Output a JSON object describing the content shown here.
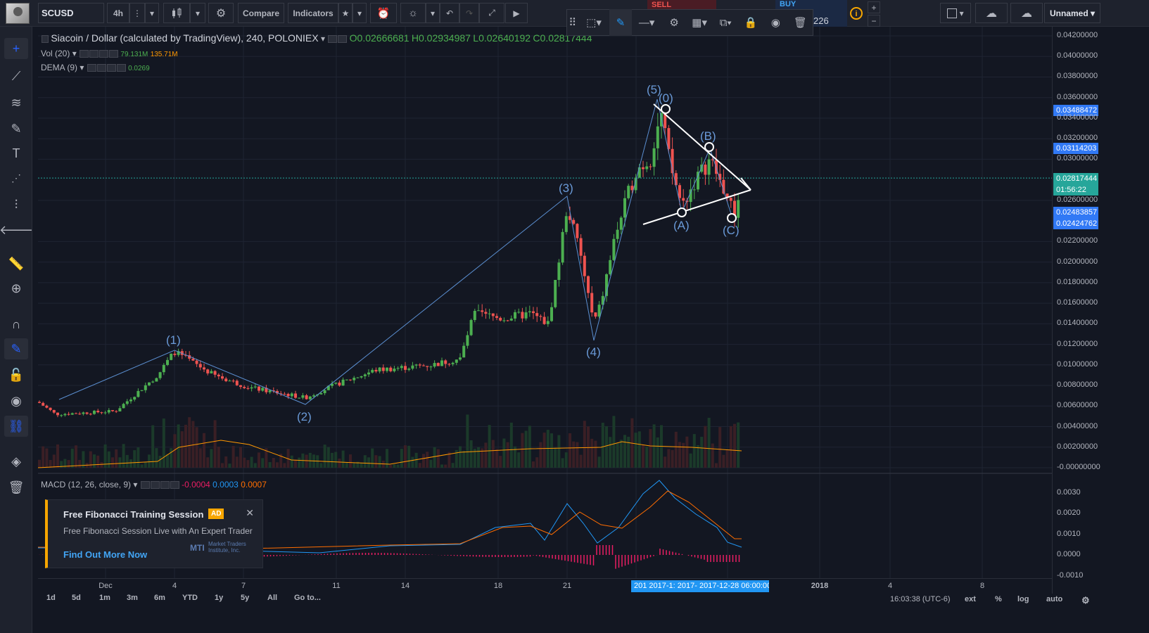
{
  "header": {
    "symbol": "SCUSD",
    "interval": "4h",
    "compare_label": "Compare",
    "indicators_label": "Indicators",
    "sell_label": "SELL",
    "buy_label": "BUY",
    "buy_price": "226",
    "layout_name": "Unnamed"
  },
  "legend": {
    "title": "Siacoin / Dollar (calculated by TradingView), 240, POLONIEX",
    "open": "O0.02666681",
    "high": "H0.02934987",
    "low": "L0.02640192",
    "close": "C0.02817444",
    "vol_label": "Vol (20)",
    "vol_value1": "79.131M",
    "vol_value2": "135.71M",
    "dema_label": "DEMA (9)",
    "dema_value": "0.0269",
    "macd_label": "MACD (12, 26, close, 9)",
    "macd_hist": "-0.0004",
    "macd_line": "0.0003",
    "macd_signal": "0.0007"
  },
  "price_axis": {
    "labels": [
      "0.04200000",
      "0.04000000",
      "0.03800000",
      "0.03600000",
      "0.03400000",
      "0.03200000",
      "0.03000000",
      "0.02600000",
      "0.02200000",
      "0.02000000",
      "0.01800000",
      "0.01600000",
      "0.01400000",
      "0.01200000",
      "0.01000000",
      "0.00800000",
      "0.00600000",
      "0.00400000",
      "0.00200000",
      "-0.00000000"
    ],
    "badges": {
      "b1": "0.03488472",
      "b2": "0.03114203",
      "b3": "0.02817444",
      "b4": "01:56:22",
      "b5": "0.02483857",
      "b6": "0.02424762"
    },
    "macd_labels": [
      "0.0030",
      "0.0020",
      "0.0010",
      "0.0000",
      "-0.0010"
    ]
  },
  "waves": {
    "w1": "(1)",
    "w2": "(2)",
    "w3": "(3)",
    "w4": "(4)",
    "w5": "(5)",
    "w0": "(0)",
    "wA": "(A)",
    "wB": "(B)",
    "wC": "(C)"
  },
  "time_axis": {
    "labels": [
      "Dec",
      "4",
      "7",
      "11",
      "14",
      "18",
      "21",
      "4",
      "8"
    ],
    "year": "2018",
    "crosshair": "201  2017-1: 2017-  2017-12-28 06:00:00"
  },
  "bottom": {
    "ranges": [
      "1d",
      "5d",
      "1m",
      "3m",
      "6m",
      "YTD",
      "1y",
      "5y",
      "All",
      "Go to..."
    ],
    "clock": "16:03:38 (UTC-6)",
    "options": [
      "ext",
      "%",
      "log",
      "auto"
    ]
  },
  "ad": {
    "title": "Free Fibonacci Training Session",
    "badge": "AD",
    "desc": "Free Fibonacci Session Live with An Expert Trader",
    "link": "Find Out More Now",
    "logo_text": "Market Traders Institute, Inc."
  },
  "colors": {
    "up": "#4caf50",
    "down": "#ef5350",
    "volume_ma": "#ff9800",
    "macd_line": "#2196f3",
    "signal_line": "#ff6d00",
    "hist": "#e91e63",
    "wave": "#5b8fd1"
  }
}
